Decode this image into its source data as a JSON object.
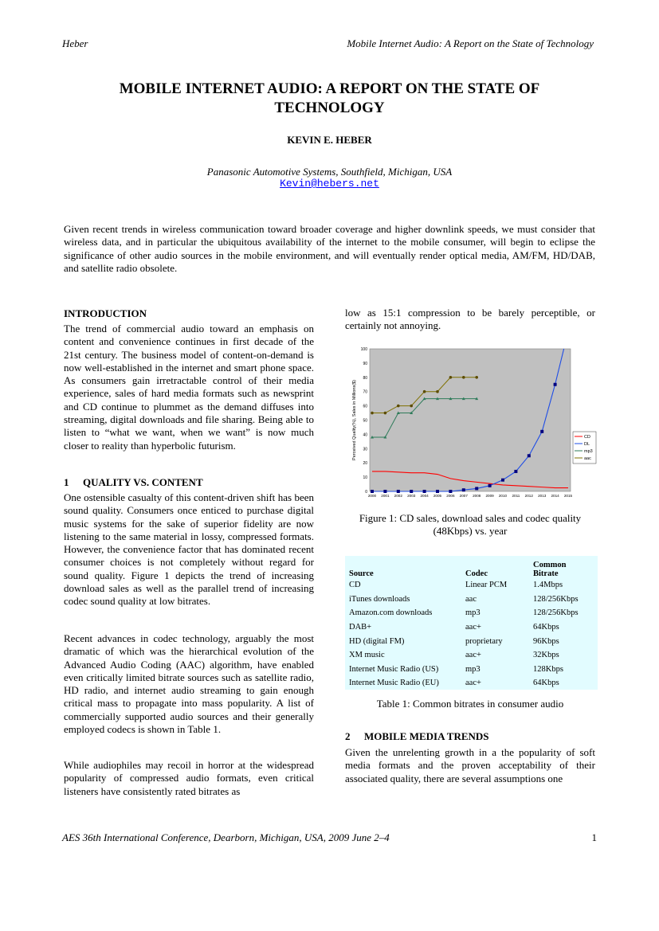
{
  "header": {
    "left": "Heber",
    "right": "Mobile Internet Audio: A Report on the State of Technology"
  },
  "title_line1": "MOBILE INTERNET AUDIO: A REPORT ON THE STATE OF",
  "title_line2": "TECHNOLOGY",
  "author": "KEVIN E. HEBER",
  "affiliation": "Panasonic Automotive Systems, Southfield, Michigan, USA",
  "email": "Kevin@hebers.net",
  "abstract": "Given recent trends in wireless communication toward broader coverage and higher downlink speeds, we must consider that wireless data, and in particular the ubiquitous availability of the internet to the mobile consumer, will begin to eclipse the significance of other audio sources in the mobile environment, and will eventually render optical media, AM/FM, HD/DAB, and satellite radio obsolete.",
  "intro": {
    "heading": "INTRODUCTION",
    "text": "The trend of commercial audio toward an emphasis on content and convenience continues in first decade of the 21st century. The business model of content-on-demand is now well-established in the internet and smart phone space. As consumers gain irretractable control of their media experience, sales of hard media formats such as newsprint and CD continue to plummet as the demand diffuses into streaming, digital downloads and file sharing. Being able to listen to “what we want, when we want” is now much closer to reality than hyperbolic futurism."
  },
  "section1": {
    "num": "1",
    "heading": "QUALITY VS. CONTENT",
    "p1": "One ostensible casualty of this content-driven shift has been sound quality. Consumers once enticed to purchase digital music systems for the sake of superior fidelity are now listening to the same material in lossy, compressed formats. However, the convenience factor that has dominated recent consumer choices is not completely without regard for sound quality. Figure 1 depicts the trend of increasing download sales as well as the parallel trend of increasing codec sound quality at low bitrates.",
    "p2": "Recent advances in codec technology, arguably the most dramatic of which was the hierarchical evolution of the Advanced Audio Coding (AAC) algorithm, have enabled even critically limited bitrate sources such as satellite radio, HD radio, and internet audio streaming to gain enough critical mass to propagate into mass popularity. A list of commercially supported audio sources and their generally employed codecs is shown in Table 1.",
    "p3": "While audiophiles may recoil in horror at the widespread popularity of compressed audio formats, even critical listeners have consistently rated bitrates as",
    "p3_cont": "low as 15:1 compression to be barely perceptible, or certainly not annoying."
  },
  "figure1": {
    "caption": "Figure 1: CD sales, download sales and codec quality (48Kbps) vs. year"
  },
  "chart_data": {
    "type": "line",
    "ylabel": "Perceived Quality(%), Sales in Millions($)",
    "ylim": [
      0,
      100
    ],
    "yticks": [
      "0",
      "10",
      "20",
      "30",
      "40",
      "50",
      "60",
      "70",
      "80",
      "90",
      "100"
    ],
    "x": [
      "2000",
      "2001",
      "2002",
      "2003",
      "2004",
      "2005",
      "2006",
      "2007",
      "2008",
      "2009",
      "2010",
      "2011",
      "2012",
      "2013",
      "2014",
      "2015"
    ],
    "series": [
      {
        "name": "CD",
        "color": "#ff0000",
        "values": [
          14,
          14,
          13.5,
          13,
          13,
          12,
          9,
          7.5,
          6.5,
          5.5,
          4.5,
          4,
          3.5,
          3,
          2.5,
          2.5
        ]
      },
      {
        "name": "DL",
        "color": "#00007f",
        "values": [
          0,
          0,
          0,
          0,
          0,
          0,
          0,
          1,
          2,
          4,
          8,
          14,
          25,
          42,
          75,
          null
        ]
      },
      {
        "name": "mp3",
        "color": "#2e7b5a",
        "values": [
          38,
          38,
          55,
          55,
          65,
          65,
          65,
          65,
          65,
          null,
          null,
          null,
          null,
          null,
          null,
          null
        ]
      },
      {
        "name": "aac",
        "color": "#7f7000",
        "values": [
          55,
          55,
          60,
          60,
          70,
          70,
          80,
          80,
          80,
          null,
          null,
          null,
          null,
          null,
          null,
          null
        ]
      }
    ]
  },
  "table1": {
    "headers": [
      "Source",
      "Codec",
      "Common",
      "Bitrate"
    ],
    "rows": [
      [
        "CD",
        "Linear PCM",
        "1.4Mbps"
      ],
      [
        "iTunes downloads",
        "aac",
        "128/256Kbps"
      ],
      [
        "Amazon.com downloads",
        "mp3",
        "128/256Kbps"
      ],
      [
        "DAB+",
        "aac+",
        "64Kbps"
      ],
      [
        "HD (digital FM)",
        "proprietary",
        "96Kbps"
      ],
      [
        "XM music",
        "aac+",
        "32Kbps"
      ],
      [
        "Internet Music Radio (US)",
        "mp3",
        "128Kbps"
      ],
      [
        "Internet Music Radio (EU)",
        "aac+",
        "64Kbps"
      ]
    ],
    "caption": "Table 1: Common bitrates in consumer audio"
  },
  "section2": {
    "num": "2",
    "heading": "MOBILE MEDIA TRENDS",
    "p1": "Given the unrelenting growth in a the popularity of soft media formats and the proven acceptability of their associated quality, there are several assumptions one"
  },
  "footer": {
    "left": "AES 36th International Conference, Dearborn, Michigan, USA, 2009 June 2–4",
    "page": "1"
  }
}
